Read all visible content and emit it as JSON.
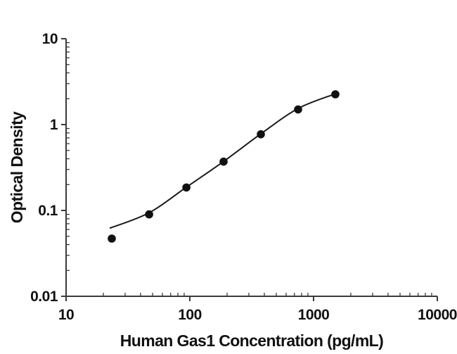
{
  "figure": {
    "background_color": "#ffffff",
    "axis_color": "#3a3a3a",
    "text_color": "#111111"
  },
  "chart_data": {
    "type": "scatter",
    "title": "",
    "xlabel": "Human Gas1 Concentration (pg/mL)",
    "ylabel": "Optical Density",
    "x_scale": "log",
    "y_scale": "log",
    "xlim": [
      10,
      10000
    ],
    "ylim": [
      0.01,
      10
    ],
    "x_tick_values": [
      10,
      100,
      1000,
      10000
    ],
    "x_tick_labels": [
      "10",
      "100",
      "1000",
      "10000"
    ],
    "y_tick_values": [
      10,
      1,
      0.1,
      0.01
    ],
    "y_tick_labels": [
      "10",
      "1",
      "0.1",
      "0.01"
    ],
    "grid": false,
    "legend": false,
    "marker_color": "#111111",
    "line_color": "#1a1a1a",
    "points": [
      {
        "x": 23.4,
        "y": 0.047
      },
      {
        "x": 46.9,
        "y": 0.09
      },
      {
        "x": 93.8,
        "y": 0.185
      },
      {
        "x": 187.5,
        "y": 0.37
      },
      {
        "x": 375,
        "y": 0.77
      },
      {
        "x": 750,
        "y": 1.5
      },
      {
        "x": 1500,
        "y": 2.25
      }
    ],
    "fit_curve": [
      {
        "x": 22.5,
        "y": 0.062
      },
      {
        "x": 47,
        "y": 0.094
      },
      {
        "x": 94,
        "y": 0.187
      },
      {
        "x": 187.5,
        "y": 0.372
      },
      {
        "x": 375,
        "y": 0.78
      },
      {
        "x": 750,
        "y": 1.54
      },
      {
        "x": 1500,
        "y": 2.28
      }
    ]
  }
}
